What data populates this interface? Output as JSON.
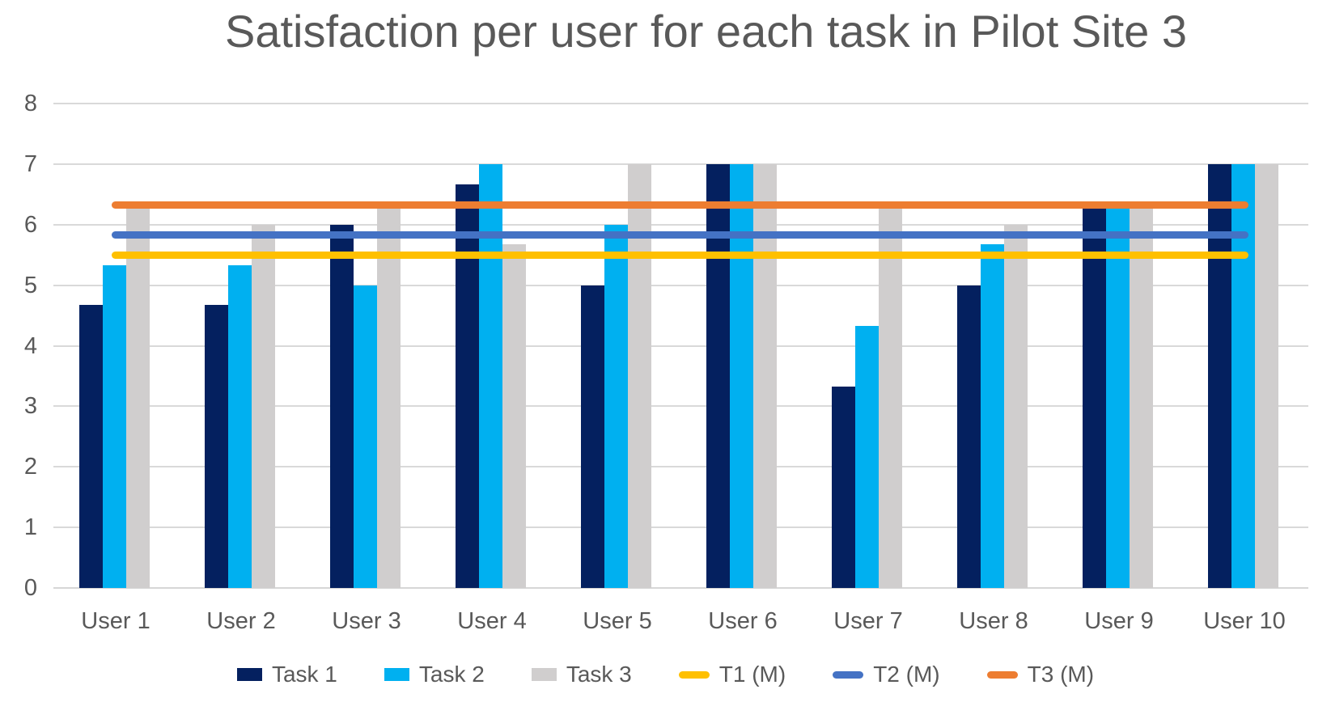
{
  "title": "Satisfaction per user for each task in Pilot Site 3",
  "colors": {
    "task1": "#04205F",
    "task2": "#00B0F0",
    "task3": "#D0CECE",
    "t1_median": "#FFC000",
    "t2_median": "#4472C4",
    "t3_median": "#ED7D31",
    "text": "#595959",
    "gridline": "#D9D9D9"
  },
  "chart_data": {
    "type": "bar",
    "title": "Satisfaction per user for each task in Pilot Site 3",
    "categories": [
      "User 1",
      "User 2",
      "User 3",
      "User 4",
      "User 5",
      "User 6",
      "User 7",
      "User 8",
      "User 9",
      "User 10"
    ],
    "series": [
      {
        "name": "Task 1",
        "type": "bar",
        "color": "#04205F",
        "values": [
          4.67,
          4.67,
          6,
          6.67,
          5,
          7,
          3.33,
          5,
          6.33,
          7
        ]
      },
      {
        "name": "Task 2",
        "type": "bar",
        "color": "#00B0F0",
        "values": [
          5.33,
          5.33,
          5,
          7,
          6,
          7,
          4.33,
          5.67,
          6.33,
          7
        ]
      },
      {
        "name": "Task 3",
        "type": "bar",
        "color": "#D0CECE",
        "values": [
          6.33,
          6,
          6.33,
          5.67,
          7,
          7,
          6.33,
          6,
          6.33,
          7
        ]
      },
      {
        "name": "T1 (M)",
        "type": "line",
        "color": "#FFC000",
        "value": 5.5
      },
      {
        "name": "T2 (M)",
        "type": "line",
        "color": "#4472C4",
        "value": 5.83
      },
      {
        "name": "T3 (M)",
        "type": "line",
        "color": "#ED7D31",
        "value": 6.33
      }
    ],
    "xlabel": "",
    "ylabel": "",
    "ylim": [
      0,
      8
    ],
    "yticks": [
      "0",
      "1",
      "2",
      "3",
      "4",
      "5",
      "6",
      "7",
      "8"
    ],
    "grid": true,
    "legend_position": "bottom"
  }
}
